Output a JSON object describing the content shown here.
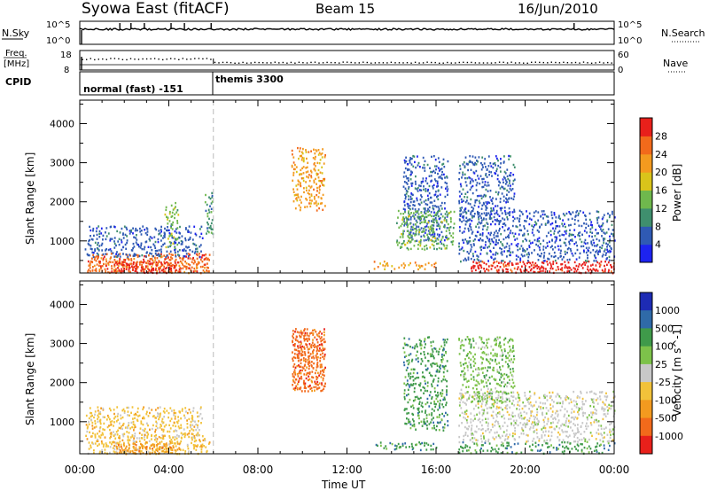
{
  "header": {
    "title": "Syowa East (fitACF)",
    "beam": "Beam 15",
    "date": "16/Jun/2010"
  },
  "top_panels": {
    "nsky_label": "N.Sky",
    "nsky_ticks": [
      "10^5",
      "10^0"
    ],
    "nsearch_label": "N.Search",
    "nsearch_ticks": [
      "10^5",
      "10^0"
    ],
    "freq_label_1": "Freq.",
    "freq_label_2": "[MHz]",
    "freq_ticks": [
      "18",
      "8"
    ],
    "nave_label": "Nave",
    "nave_ticks": [
      "60",
      "0"
    ],
    "cpid_label": "CPID",
    "cpid_segments": [
      {
        "name": "normal (fast) -151",
        "start_hour": 0,
        "end_hour": 6
      },
      {
        "name": "themis 3300",
        "start_hour": 6,
        "end_hour": 24
      }
    ]
  },
  "chart_data": [
    {
      "type": "heatmap",
      "ylabel": "Slant Range [km]",
      "ylim": [
        180,
        4600
      ],
      "yticks": [
        1000,
        2000,
        3000,
        4000
      ],
      "xlim": [
        0,
        24
      ],
      "xtick_hours": [
        0,
        4,
        8,
        12,
        16,
        20,
        24
      ],
      "colorbar": {
        "label": "Power [dB]",
        "tick_labels": [
          "4",
          "8",
          "12",
          "16",
          "20",
          "24",
          "28"
        ],
        "colors": [
          "#1d23f0",
          "#2f5ab4",
          "#3f8f6e",
          "#6fb84d",
          "#d9c41a",
          "#f39a1f",
          "#f26a1b",
          "#e8201b"
        ]
      },
      "regions": [
        {
          "x": [
            0.3,
            5.8
          ],
          "y": [
            200,
            700
          ],
          "level": 6
        },
        {
          "x": [
            1.5,
            4.5
          ],
          "y": [
            200,
            500
          ],
          "level": 7
        },
        {
          "x": [
            0.2,
            5.5
          ],
          "y": [
            600,
            1400
          ],
          "level": 1
        },
        {
          "x": [
            3.8,
            4.4
          ],
          "y": [
            800,
            2000
          ],
          "level": 3
        },
        {
          "x": [
            5.6,
            6.0
          ],
          "y": [
            1200,
            2300
          ],
          "level": 2
        },
        {
          "x": [
            13.2,
            16.0
          ],
          "y": [
            300,
            500
          ],
          "level": 5
        },
        {
          "x": [
            14.5,
            16.5
          ],
          "y": [
            1000,
            3200
          ],
          "level": 1
        },
        {
          "x": [
            14.2,
            16.8
          ],
          "y": [
            800,
            1800
          ],
          "level": 3
        },
        {
          "x": [
            17.5,
            24
          ],
          "y": [
            200,
            500
          ],
          "level": 7
        },
        {
          "x": [
            17.0,
            24
          ],
          "y": [
            500,
            1800
          ],
          "level": 1
        },
        {
          "x": [
            17.0,
            19.5
          ],
          "y": [
            1500,
            3200
          ],
          "level": 1
        },
        {
          "x": [
            9.5,
            11.0
          ],
          "y": [
            1800,
            3400
          ],
          "level": 5
        }
      ]
    },
    {
      "type": "heatmap",
      "ylabel": "Slant Range [km]",
      "xlabel": "Time UT",
      "ylim": [
        180,
        4600
      ],
      "yticks": [
        1000,
        2000,
        3000,
        4000
      ],
      "xlim": [
        0,
        24
      ],
      "xtick_labels": [
        "00:00",
        "04:00",
        "08:00",
        "12:00",
        "16:00",
        "20:00",
        "00:00"
      ],
      "colorbar": {
        "label": "Velocity [m s^-1]",
        "tick_labels": [
          "1000",
          "500",
          "100",
          "25",
          "-25",
          "-100",
          "-500",
          "-1000"
        ],
        "colors": [
          "#1d2bb4",
          "#2f6aa8",
          "#3f9a4a",
          "#7dc24a",
          "#c8c8c8",
          "#f2c23a",
          "#f39a1f",
          "#f26a1b",
          "#e8201b"
        ]
      },
      "regions": [
        {
          "x": [
            0.3,
            5.8
          ],
          "y": [
            200,
            700
          ],
          "level": 5
        },
        {
          "x": [
            1.5,
            4.5
          ],
          "y": [
            200,
            500
          ],
          "level": 6
        },
        {
          "x": [
            0.2,
            5.5
          ],
          "y": [
            600,
            1400
          ],
          "level": 5
        },
        {
          "x": [
            13.2,
            16.0
          ],
          "y": [
            300,
            500
          ],
          "level": 2
        },
        {
          "x": [
            14.5,
            16.5
          ],
          "y": [
            800,
            3200
          ],
          "level": 2
        },
        {
          "x": [
            17.0,
            24
          ],
          "y": [
            200,
            500
          ],
          "level": 2
        },
        {
          "x": [
            17.0,
            24
          ],
          "y": [
            500,
            1800
          ],
          "level": 4
        },
        {
          "x": [
            17.0,
            19.5
          ],
          "y": [
            1500,
            3200
          ],
          "level": 3
        },
        {
          "x": [
            9.5,
            11.0
          ],
          "y": [
            1800,
            3400
          ],
          "level": 7
        }
      ]
    }
  ]
}
